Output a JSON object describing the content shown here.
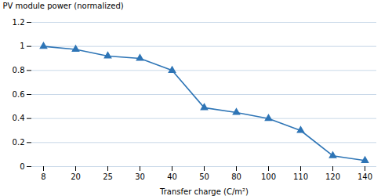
{
  "chart_data": {
    "type": "line",
    "categories": [
      "8",
      "20",
      "25",
      "30",
      "40",
      "50",
      "80",
      "100",
      "110",
      "120",
      "140"
    ],
    "values": [
      1.0,
      0.975,
      0.92,
      0.9,
      0.8,
      0.49,
      0.45,
      0.4,
      0.3,
      0.09,
      0.05
    ],
    "xlabel": "Transfer charge (C/m²)",
    "ylabel": "PV module power (normalized)",
    "ylim": [
      0,
      1.2
    ],
    "yticks": [
      0,
      0.2,
      0.4,
      0.6,
      0.8,
      1,
      1.2
    ],
    "color": "#2e75b6",
    "marker": "triangle",
    "grid": true
  }
}
